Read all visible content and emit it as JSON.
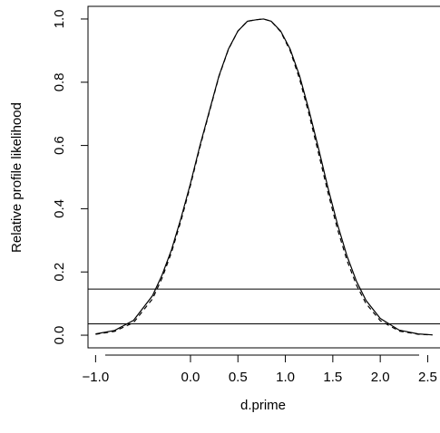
{
  "chart_data": {
    "type": "line",
    "title": "",
    "xlabel": "d.prime",
    "ylabel": "Relative profile likelihood",
    "xlim": [
      -1.08,
      2.62
    ],
    "ylim": [
      -0.04,
      1.04
    ],
    "x_ticks": [
      -1.0,
      0.0,
      0.5,
      1.0,
      1.5,
      2.0,
      2.5
    ],
    "x_tick_labels": [
      "−1.0",
      "0.0",
      "0.5",
      "1.0",
      "1.5",
      "2.0",
      "2.5"
    ],
    "y_ticks": [
      0.0,
      0.2,
      0.4,
      0.6,
      0.8,
      1.0
    ],
    "y_tick_labels": [
      "0.0",
      "0.2",
      "0.4",
      "0.6",
      "0.8",
      "1.0"
    ],
    "grid": false,
    "series": [
      {
        "style": "solid",
        "x": [
          -1.0,
          -0.8,
          -0.6,
          -0.4,
          -0.3,
          -0.2,
          -0.1,
          0.0,
          0.1,
          0.2,
          0.3,
          0.4,
          0.5,
          0.6,
          0.7,
          0.77,
          0.85,
          0.95,
          1.05,
          1.15,
          1.25,
          1.35,
          1.45,
          1.55,
          1.65,
          1.75,
          1.85,
          2.0,
          2.2,
          2.4,
          2.55
        ],
        "y": [
          0.004,
          0.015,
          0.047,
          0.125,
          0.19,
          0.27,
          0.37,
          0.48,
          0.6,
          0.71,
          0.82,
          0.905,
          0.962,
          0.993,
          0.998,
          1.0,
          0.993,
          0.962,
          0.905,
          0.82,
          0.71,
          0.59,
          0.465,
          0.35,
          0.25,
          0.17,
          0.11,
          0.053,
          0.016,
          0.004,
          0.001
        ]
      },
      {
        "style": "dashed",
        "x": [
          -1.0,
          -0.8,
          -0.6,
          -0.4,
          -0.3,
          -0.2,
          -0.1,
          0.0,
          0.1,
          0.2,
          0.3,
          0.4,
          0.5,
          0.6,
          0.7,
          0.77,
          0.85,
          0.95,
          1.05,
          1.15,
          1.25,
          1.35,
          1.45,
          1.55,
          1.65,
          1.75,
          1.85,
          2.0,
          2.2,
          2.4,
          2.55
        ],
        "y": [
          0.003,
          0.012,
          0.04,
          0.115,
          0.18,
          0.262,
          0.362,
          0.474,
          0.595,
          0.707,
          0.818,
          0.904,
          0.962,
          0.993,
          0.998,
          1.0,
          0.993,
          0.96,
          0.9,
          0.81,
          0.698,
          0.575,
          0.45,
          0.335,
          0.236,
          0.158,
          0.1,
          0.046,
          0.013,
          0.003,
          0.001
        ]
      }
    ],
    "hlines": [
      0.146,
      0.036
    ]
  }
}
